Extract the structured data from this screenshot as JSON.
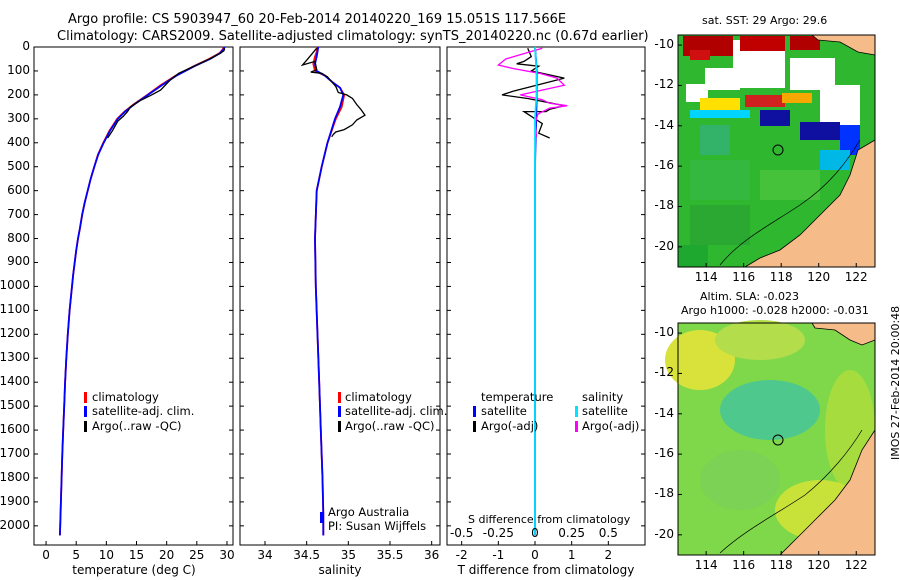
{
  "title": {
    "line1": "Argo profile: CS 5903947_60 20-Feb-2014 20140220_169 15.051S 117.566E",
    "line2": "Climatology: CARS2009. Satellite-adjusted climatology: synTS_20140220.nc (0.67d earlier)"
  },
  "colors": {
    "climatology": "#ff0000",
    "satellite": "#0000ff",
    "argo": "#000000",
    "sat_salinity": "#00e5ff",
    "argo_adj": "#ff00ff"
  },
  "chart_data": [
    {
      "type": "line",
      "id": "temperature",
      "xlabel": "temperature (deg C)",
      "xlim": [
        -2,
        31
      ],
      "ylim": [
        2080,
        0
      ],
      "x_ticks": [
        "0",
        "5",
        "10",
        "15",
        "20",
        "25",
        "30"
      ],
      "y_ticks": [
        "0",
        "100",
        "200",
        "300",
        "400",
        "500",
        "600",
        "700",
        "800",
        "900",
        "1000",
        "1100",
        "1200",
        "1300",
        "1400",
        "1500",
        "1600",
        "1700",
        "1800",
        "1900",
        "2000"
      ],
      "legend": [
        "climatology",
        "satellite-adj. clim.",
        "Argo(..raw -QC)"
      ],
      "series": [
        {
          "name": "climatology",
          "points": [
            [
              29.5,
              0
            ],
            [
              29.3,
              10
            ],
            [
              28.8,
              25
            ],
            [
              27,
              50
            ],
            [
              24.5,
              80
            ],
            [
              21.5,
              120
            ],
            [
              19,
              160
            ],
            [
              16.8,
              200
            ],
            [
              14.5,
              240
            ],
            [
              13,
              270
            ],
            [
              11.8,
              300
            ],
            [
              10.5,
              350
            ],
            [
              9.5,
              400
            ],
            [
              8.6,
              450
            ],
            [
              8,
              500
            ],
            [
              7.4,
              550
            ],
            [
              6.9,
              600
            ],
            [
              6.4,
              650
            ],
            [
              6,
              700
            ],
            [
              5.6,
              760
            ],
            [
              5.3,
              800
            ],
            [
              5,
              850
            ],
            [
              4.75,
              900
            ],
            [
              4.5,
              950
            ],
            [
              4.3,
              1000
            ],
            [
              3.9,
              1100
            ],
            [
              3.6,
              1200
            ],
            [
              3.35,
              1300
            ],
            [
              3.15,
              1400
            ],
            [
              3,
              1500
            ],
            [
              2.85,
              1600
            ],
            [
              2.7,
              1700
            ],
            [
              2.58,
              1800
            ],
            [
              2.46,
              1900
            ],
            [
              2.35,
              2000
            ],
            [
              2.3,
              2040
            ]
          ]
        },
        {
          "name": "satellite-adj. clim.",
          "points": [
            [
              29.6,
              0
            ],
            [
              29.4,
              10
            ],
            [
              28.9,
              25
            ],
            [
              27.2,
              50
            ],
            [
              24.6,
              80
            ],
            [
              21.6,
              120
            ],
            [
              19.2,
              160
            ],
            [
              16.9,
              200
            ],
            [
              14.6,
              240
            ],
            [
              13.1,
              270
            ],
            [
              11.9,
              300
            ],
            [
              10.6,
              350
            ],
            [
              9.55,
              400
            ],
            [
              8.65,
              450
            ],
            [
              8,
              500
            ],
            [
              7.4,
              550
            ],
            [
              6.9,
              600
            ],
            [
              6.4,
              650
            ],
            [
              6,
              700
            ],
            [
              5.6,
              760
            ],
            [
              5.3,
              800
            ],
            [
              5,
              850
            ],
            [
              4.75,
              900
            ],
            [
              4.5,
              950
            ],
            [
              4.3,
              1000
            ],
            [
              3.9,
              1100
            ],
            [
              3.6,
              1200
            ],
            [
              3.35,
              1300
            ],
            [
              3.15,
              1400
            ],
            [
              3,
              1500
            ],
            [
              2.85,
              1600
            ],
            [
              2.7,
              1700
            ],
            [
              2.58,
              1800
            ],
            [
              2.46,
              1900
            ],
            [
              2.35,
              2000
            ],
            [
              2.3,
              2040
            ]
          ]
        },
        {
          "name": "Argo(..raw -QC)",
          "points": [
            [
              29.6,
              5
            ],
            [
              29.5,
              15
            ],
            [
              29,
              25
            ],
            [
              27.5,
              45
            ],
            [
              25,
              75
            ],
            [
              22,
              110
            ],
            [
              20.5,
              140
            ],
            [
              19,
              180
            ],
            [
              17.5,
              200
            ],
            [
              15.5,
              225
            ],
            [
              14,
              250
            ],
            [
              13.5,
              270
            ],
            [
              12.8,
              290
            ],
            [
              11.9,
              310
            ],
            [
              11,
              350
            ],
            [
              10.2,
              380
            ]
          ]
        }
      ]
    },
    {
      "type": "line",
      "id": "salinity",
      "xlabel": "salinity",
      "xlim": [
        33.7,
        36.1
      ],
      "ylim": [
        2080,
        0
      ],
      "x_ticks": [
        "34",
        "34.5",
        "35",
        "35.5",
        "36"
      ],
      "legend": [
        "climatology",
        "satellite-adj. clim.",
        "Argo(..raw -QC)"
      ],
      "annotations": [
        "Argo Australia",
        "PI: Susan Wijffels"
      ],
      "series": [
        {
          "name": "climatology",
          "points": [
            [
              34.7,
              2040
            ],
            [
              34.7,
              1950
            ],
            [
              34.69,
              1800
            ],
            [
              34.67,
              1600
            ],
            [
              34.65,
              1400
            ],
            [
              34.63,
              1200
            ],
            [
              34.61,
              1000
            ],
            [
              34.6,
              800
            ],
            [
              34.62,
              600
            ],
            [
              34.68,
              500
            ],
            [
              34.75,
              400
            ],
            [
              34.85,
              300
            ],
            [
              34.92,
              250
            ],
            [
              34.95,
              200
            ],
            [
              34.9,
              170
            ],
            [
              34.82,
              150
            ],
            [
              34.72,
              120
            ],
            [
              34.6,
              100
            ],
            [
              34.58,
              70
            ],
            [
              34.6,
              40
            ],
            [
              34.62,
              20
            ],
            [
              34.63,
              0
            ]
          ]
        },
        {
          "name": "satellite-adj. clim.",
          "points": [
            [
              34.7,
              2040
            ],
            [
              34.7,
              1950
            ],
            [
              34.69,
              1800
            ],
            [
              34.67,
              1600
            ],
            [
              34.65,
              1400
            ],
            [
              34.63,
              1200
            ],
            [
              34.61,
              1000
            ],
            [
              34.6,
              800
            ],
            [
              34.62,
              600
            ],
            [
              34.68,
              500
            ],
            [
              34.75,
              400
            ],
            [
              34.84,
              300
            ],
            [
              34.9,
              250
            ],
            [
              34.94,
              200
            ],
            [
              34.9,
              170
            ],
            [
              34.82,
              150
            ],
            [
              34.72,
              120
            ],
            [
              34.62,
              100
            ],
            [
              34.6,
              70
            ],
            [
              34.62,
              40
            ],
            [
              34.63,
              20
            ],
            [
              34.64,
              0
            ]
          ]
        },
        {
          "name": "Argo(..raw -QC)",
          "points": [
            [
              34.62,
              5
            ],
            [
              34.5,
              55
            ],
            [
              34.45,
              75
            ],
            [
              34.6,
              60
            ],
            [
              34.62,
              95
            ],
            [
              34.55,
              105
            ],
            [
              34.68,
              110
            ],
            [
              34.75,
              125
            ],
            [
              34.85,
              165
            ],
            [
              34.88,
              190
            ],
            [
              34.98,
              200
            ],
            [
              35.05,
              215
            ],
            [
              35.1,
              240
            ],
            [
              35.15,
              260
            ],
            [
              35.2,
              285
            ],
            [
              35.1,
              305
            ],
            [
              35.05,
              325
            ],
            [
              34.95,
              345
            ],
            [
              34.85,
              355
            ],
            [
              34.82,
              365
            ],
            [
              34.8,
              375
            ]
          ]
        }
      ]
    },
    {
      "type": "line",
      "id": "difference",
      "xlabel": "T difference from climatology",
      "xlabel_top": "S difference from climatology",
      "xlim": [
        -2.4,
        3.0
      ],
      "ylim": [
        2080,
        0
      ],
      "x_ticks": [
        "-2",
        "-1",
        "0",
        "1",
        "2"
      ],
      "s_ticks": [
        "-0.5",
        "-0.25",
        "0",
        "0.25",
        "0.5"
      ],
      "legend_left": [
        "temperature",
        "satellite",
        "Argo(-adj)"
      ],
      "legend_right": [
        "salinity",
        "satellite",
        "Argo(-adj)"
      ],
      "series": [
        {
          "name": "T satellite",
          "points": [
            [
              0,
              0
            ],
            [
              0.05,
              100
            ],
            [
              0.05,
              200
            ],
            [
              0.03,
              300
            ],
            [
              0,
              500
            ],
            [
              0,
              2040
            ]
          ]
        },
        {
          "name": "T Argo(-adj)",
          "points": [
            [
              -0.2,
              5
            ],
            [
              -0.1,
              40
            ],
            [
              -0.3,
              60
            ],
            [
              -0.5,
              70
            ],
            [
              0.1,
              80
            ],
            [
              -0.1,
              100
            ],
            [
              0.8,
              130
            ],
            [
              -0.6,
              185
            ],
            [
              -0.9,
              200
            ],
            [
              -0.2,
              215
            ],
            [
              0.8,
              245
            ],
            [
              0.4,
              260
            ],
            [
              0.3,
              270
            ],
            [
              -0.3,
              270
            ],
            [
              0.2,
              320
            ],
            [
              0.1,
              360
            ],
            [
              0.4,
              380
            ]
          ]
        },
        {
          "name": "S satellite",
          "points": [
            [
              0,
              0
            ],
            [
              0.01,
              100
            ],
            [
              0.01,
              200
            ],
            [
              0,
              300
            ],
            [
              0,
              2040
            ]
          ]
        },
        {
          "name": "S Argo(-adj)",
          "points": [
            [
              0.05,
              5
            ],
            [
              -0.2,
              50
            ],
            [
              -0.25,
              75
            ],
            [
              -0.15,
              90
            ],
            [
              0.03,
              110
            ],
            [
              0.15,
              130
            ],
            [
              0.2,
              160
            ],
            [
              -0.1,
              200
            ],
            [
              0.05,
              220
            ],
            [
              0.1,
              235
            ],
            [
              0.22,
              245
            ],
            [
              0.1,
              255
            ],
            [
              0.02,
              280
            ],
            [
              0.0,
              320
            ],
            [
              0.01,
              375
            ]
          ]
        }
      ]
    },
    {
      "type": "heatmap",
      "id": "sst-map",
      "title": "sat. SST: 29 Argo: 29.6",
      "x_ticks": [
        "114",
        "116",
        "118",
        "120",
        "122"
      ],
      "y_ticks": [
        "-10",
        "-12",
        "-14",
        "-16",
        "-18",
        "-20"
      ],
      "xlim": [
        112.5,
        123
      ],
      "ylim": [
        -21,
        -9.5
      ],
      "argo_position": [
        117.566,
        -15.051
      ]
    },
    {
      "type": "heatmap",
      "id": "sla-map",
      "title_lines": [
        "Altim. SLA: -0.023",
        "Argo h1000: -0.028 h2000: -0.031"
      ],
      "x_ticks": [
        "114",
        "116",
        "118",
        "120",
        "122"
      ],
      "y_ticks": [
        "-10",
        "-12",
        "-14",
        "-16",
        "-18",
        "-20"
      ],
      "xlim": [
        112.5,
        123
      ],
      "ylim": [
        -21,
        -9.5
      ],
      "argo_position": [
        117.566,
        -15.051
      ]
    }
  ],
  "side_label": "IMOS 27-Feb-2014 20:00:48"
}
